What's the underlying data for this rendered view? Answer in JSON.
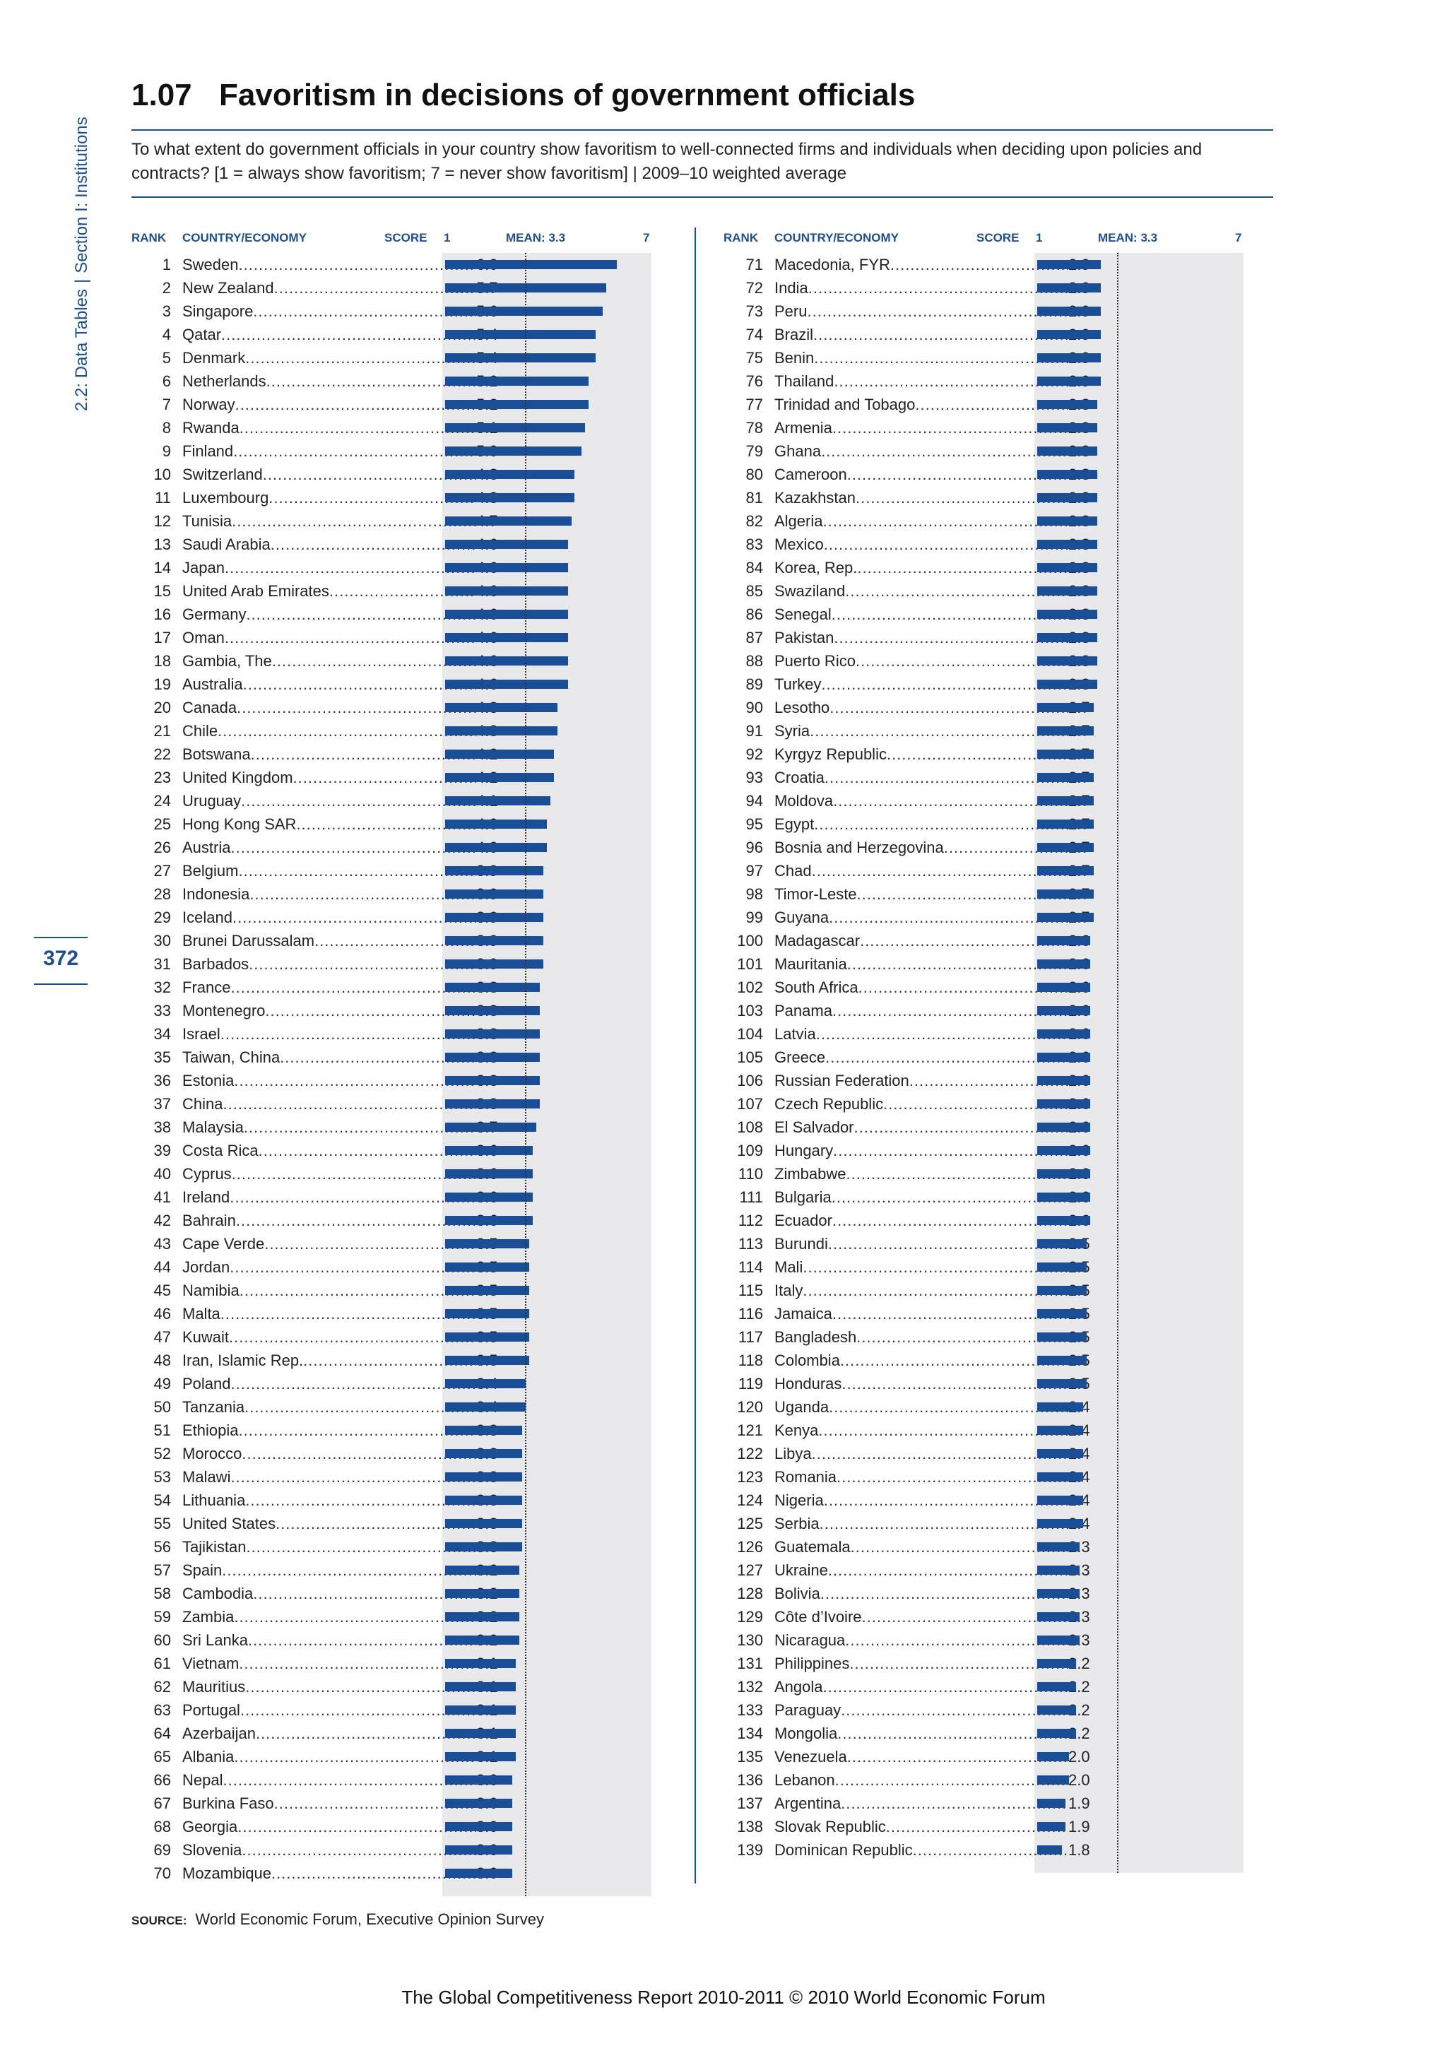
{
  "side_label": {
    "section": "2.2: Data Tables",
    "separator": "|",
    "part": "Section I: Institutions"
  },
  "page_number": "372",
  "title": {
    "number": "1.07",
    "text": "Favoritism in decisions of government officials"
  },
  "question": "To what extent do government officials in your country show favoritism to well-connected firms and individuals when deciding upon policies and contracts? [1 = always show favoritism; 7 = never show favoritism] | 2009–10 weighted average",
  "headers": {
    "rank": "RANK",
    "country": "COUNTRY/ECONOMY",
    "score": "SCORE",
    "scale_min": "1",
    "mean": "MEAN: 3.3",
    "scale_max": "7"
  },
  "chart_data": {
    "type": "bar",
    "orientation": "horizontal",
    "xlim": [
      1,
      7
    ],
    "mean": 3.3,
    "rows": [
      {
        "rank": "1",
        "name": "Sweden",
        "score": 6.0
      },
      {
        "rank": "2",
        "name": "New Zealand",
        "score": 5.7
      },
      {
        "rank": "3",
        "name": "Singapore",
        "score": 5.6
      },
      {
        "rank": "4",
        "name": "Qatar",
        "score": 5.4
      },
      {
        "rank": "5",
        "name": "Denmark",
        "score": 5.4
      },
      {
        "rank": "6",
        "name": "Netherlands",
        "score": 5.2
      },
      {
        "rank": "7",
        "name": "Norway",
        "score": 5.2
      },
      {
        "rank": "8",
        "name": "Rwanda",
        "score": 5.1
      },
      {
        "rank": "9",
        "name": "Finland",
        "score": 5.0
      },
      {
        "rank": "10",
        "name": "Switzerland",
        "score": 4.8
      },
      {
        "rank": "11",
        "name": "Luxembourg",
        "score": 4.8
      },
      {
        "rank": "12",
        "name": "Tunisia",
        "score": 4.7
      },
      {
        "rank": "13",
        "name": "Saudi Arabia",
        "score": 4.6
      },
      {
        "rank": "14",
        "name": "Japan",
        "score": 4.6
      },
      {
        "rank": "15",
        "name": "United Arab Emirates",
        "score": 4.6
      },
      {
        "rank": "16",
        "name": "Germany",
        "score": 4.6
      },
      {
        "rank": "17",
        "name": "Oman",
        "score": 4.6
      },
      {
        "rank": "18",
        "name": "Gambia, The",
        "score": 4.6
      },
      {
        "rank": "19",
        "name": "Australia",
        "score": 4.6
      },
      {
        "rank": "20",
        "name": "Canada",
        "score": 4.3
      },
      {
        "rank": "21",
        "name": "Chile",
        "score": 4.3
      },
      {
        "rank": "22",
        "name": "Botswana",
        "score": 4.2
      },
      {
        "rank": "23",
        "name": "United Kingdom",
        "score": 4.2
      },
      {
        "rank": "24",
        "name": "Uruguay",
        "score": 4.1
      },
      {
        "rank": "25",
        "name": "Hong Kong SAR",
        "score": 4.0
      },
      {
        "rank": "26",
        "name": "Austria",
        "score": 4.0
      },
      {
        "rank": "27",
        "name": "Belgium",
        "score": 3.9
      },
      {
        "rank": "28",
        "name": "Indonesia",
        "score": 3.9
      },
      {
        "rank": "29",
        "name": "Iceland",
        "score": 3.9
      },
      {
        "rank": "30",
        "name": "Brunei Darussalam",
        "score": 3.9
      },
      {
        "rank": "31",
        "name": "Barbados",
        "score": 3.9
      },
      {
        "rank": "32",
        "name": "France",
        "score": 3.8
      },
      {
        "rank": "33",
        "name": "Montenegro",
        "score": 3.8
      },
      {
        "rank": "34",
        "name": "Israel",
        "score": 3.8
      },
      {
        "rank": "35",
        "name": "Taiwan, China",
        "score": 3.8
      },
      {
        "rank": "36",
        "name": "Estonia",
        "score": 3.8
      },
      {
        "rank": "37",
        "name": "China",
        "score": 3.8
      },
      {
        "rank": "38",
        "name": "Malaysia",
        "score": 3.7
      },
      {
        "rank": "39",
        "name": "Costa Rica",
        "score": 3.6
      },
      {
        "rank": "40",
        "name": "Cyprus",
        "score": 3.6
      },
      {
        "rank": "41",
        "name": "Ireland",
        "score": 3.6
      },
      {
        "rank": "42",
        "name": "Bahrain",
        "score": 3.6
      },
      {
        "rank": "43",
        "name": "Cape Verde",
        "score": 3.5
      },
      {
        "rank": "44",
        "name": "Jordan",
        "score": 3.5
      },
      {
        "rank": "45",
        "name": "Namibia",
        "score": 3.5
      },
      {
        "rank": "46",
        "name": "Malta",
        "score": 3.5
      },
      {
        "rank": "47",
        "name": "Kuwait",
        "score": 3.5
      },
      {
        "rank": "48",
        "name": "Iran, Islamic Rep.",
        "score": 3.5
      },
      {
        "rank": "49",
        "name": "Poland",
        "score": 3.4
      },
      {
        "rank": "50",
        "name": "Tanzania",
        "score": 3.4
      },
      {
        "rank": "51",
        "name": "Ethiopia",
        "score": 3.3
      },
      {
        "rank": "52",
        "name": "Morocco",
        "score": 3.3
      },
      {
        "rank": "53",
        "name": "Malawi",
        "score": 3.3
      },
      {
        "rank": "54",
        "name": "Lithuania",
        "score": 3.3
      },
      {
        "rank": "55",
        "name": "United States",
        "score": 3.3
      },
      {
        "rank": "56",
        "name": "Tajikistan",
        "score": 3.3
      },
      {
        "rank": "57",
        "name": "Spain",
        "score": 3.2
      },
      {
        "rank": "58",
        "name": "Cambodia",
        "score": 3.2
      },
      {
        "rank": "59",
        "name": "Zambia",
        "score": 3.2
      },
      {
        "rank": "60",
        "name": "Sri Lanka",
        "score": 3.2
      },
      {
        "rank": "61",
        "name": "Vietnam",
        "score": 3.1
      },
      {
        "rank": "62",
        "name": "Mauritius",
        "score": 3.1
      },
      {
        "rank": "63",
        "name": "Portugal",
        "score": 3.1
      },
      {
        "rank": "64",
        "name": "Azerbaijan",
        "score": 3.1
      },
      {
        "rank": "65",
        "name": "Albania",
        "score": 3.1
      },
      {
        "rank": "66",
        "name": "Nepal",
        "score": 3.0
      },
      {
        "rank": "67",
        "name": "Burkina Faso",
        "score": 3.0
      },
      {
        "rank": "68",
        "name": "Georgia",
        "score": 3.0
      },
      {
        "rank": "69",
        "name": "Slovenia",
        "score": 3.0
      },
      {
        "rank": "70",
        "name": "Mozambique",
        "score": 3.0
      },
      {
        "rank": "71",
        "name": "Macedonia, FYR",
        "score": 2.9
      },
      {
        "rank": "72",
        "name": "India",
        "score": 2.9
      },
      {
        "rank": "73",
        "name": "Peru",
        "score": 2.9
      },
      {
        "rank": "74",
        "name": "Brazil",
        "score": 2.9
      },
      {
        "rank": "75",
        "name": "Benin",
        "score": 2.9
      },
      {
        "rank": "76",
        "name": "Thailand",
        "score": 2.9
      },
      {
        "rank": "77",
        "name": "Trinidad and Tobago",
        "score": 2.8
      },
      {
        "rank": "78",
        "name": "Armenia",
        "score": 2.8
      },
      {
        "rank": "79",
        "name": "Ghana",
        "score": 2.8
      },
      {
        "rank": "80",
        "name": "Cameroon",
        "score": 2.8
      },
      {
        "rank": "81",
        "name": "Kazakhstan",
        "score": 2.8
      },
      {
        "rank": "82",
        "name": "Algeria",
        "score": 2.8
      },
      {
        "rank": "83",
        "name": "Mexico",
        "score": 2.8
      },
      {
        "rank": "84",
        "name": "Korea, Rep.",
        "score": 2.8
      },
      {
        "rank": "85",
        "name": "Swaziland",
        "score": 2.8
      },
      {
        "rank": "86",
        "name": "Senegal",
        "score": 2.8
      },
      {
        "rank": "87",
        "name": "Pakistan",
        "score": 2.8
      },
      {
        "rank": "88",
        "name": "Puerto Rico",
        "score": 2.8
      },
      {
        "rank": "89",
        "name": "Turkey",
        "score": 2.8
      },
      {
        "rank": "90",
        "name": "Lesotho",
        "score": 2.7
      },
      {
        "rank": "91",
        "name": "Syria",
        "score": 2.7
      },
      {
        "rank": "92",
        "name": "Kyrgyz Republic",
        "score": 2.7
      },
      {
        "rank": "93",
        "name": "Croatia",
        "score": 2.7
      },
      {
        "rank": "94",
        "name": "Moldova",
        "score": 2.7
      },
      {
        "rank": "95",
        "name": "Egypt",
        "score": 2.7
      },
      {
        "rank": "96",
        "name": "Bosnia and Herzegovina",
        "score": 2.7
      },
      {
        "rank": "97",
        "name": "Chad",
        "score": 2.7
      },
      {
        "rank": "98",
        "name": "Timor-Leste",
        "score": 2.7
      },
      {
        "rank": "99",
        "name": "Guyana",
        "score": 2.7
      },
      {
        "rank": "100",
        "name": "Madagascar",
        "score": 2.6
      },
      {
        "rank": "101",
        "name": "Mauritania",
        "score": 2.6
      },
      {
        "rank": "102",
        "name": "South Africa",
        "score": 2.6
      },
      {
        "rank": "103",
        "name": "Panama",
        "score": 2.6
      },
      {
        "rank": "104",
        "name": "Latvia",
        "score": 2.6
      },
      {
        "rank": "105",
        "name": "Greece",
        "score": 2.6
      },
      {
        "rank": "106",
        "name": "Russian Federation",
        "score": 2.6
      },
      {
        "rank": "107",
        "name": "Czech Republic",
        "score": 2.6
      },
      {
        "rank": "108",
        "name": "El Salvador",
        "score": 2.6
      },
      {
        "rank": "109",
        "name": "Hungary",
        "score": 2.6
      },
      {
        "rank": "110",
        "name": "Zimbabwe",
        "score": 2.6
      },
      {
        "rank": "111",
        "name": "Bulgaria",
        "score": 2.6
      },
      {
        "rank": "112",
        "name": "Ecuador",
        "score": 2.6
      },
      {
        "rank": "113",
        "name": "Burundi",
        "score": 2.5
      },
      {
        "rank": "114",
        "name": "Mali",
        "score": 2.5
      },
      {
        "rank": "115",
        "name": "Italy",
        "score": 2.5
      },
      {
        "rank": "116",
        "name": "Jamaica",
        "score": 2.5
      },
      {
        "rank": "117",
        "name": "Bangladesh",
        "score": 2.5
      },
      {
        "rank": "118",
        "name": "Colombia",
        "score": 2.5
      },
      {
        "rank": "119",
        "name": "Honduras",
        "score": 2.5
      },
      {
        "rank": "120",
        "name": "Uganda",
        "score": 2.4
      },
      {
        "rank": "121",
        "name": "Kenya",
        "score": 2.4
      },
      {
        "rank": "122",
        "name": "Libya",
        "score": 2.4
      },
      {
        "rank": "123",
        "name": "Romania",
        "score": 2.4
      },
      {
        "rank": "124",
        "name": "Nigeria",
        "score": 2.4
      },
      {
        "rank": "125",
        "name": "Serbia",
        "score": 2.4
      },
      {
        "rank": "126",
        "name": "Guatemala",
        "score": 2.3
      },
      {
        "rank": "127",
        "name": "Ukraine",
        "score": 2.3
      },
      {
        "rank": "128",
        "name": "Bolivia",
        "score": 2.3
      },
      {
        "rank": "129",
        "name": "Côte d’Ivoire",
        "score": 2.3
      },
      {
        "rank": "130",
        "name": "Nicaragua",
        "score": 2.3
      },
      {
        "rank": "131",
        "name": "Philippines",
        "score": 2.2
      },
      {
        "rank": "132",
        "name": "Angola",
        "score": 2.2
      },
      {
        "rank": "133",
        "name": "Paraguay",
        "score": 2.2
      },
      {
        "rank": "134",
        "name": "Mongolia",
        "score": 2.2
      },
      {
        "rank": "135",
        "name": "Venezuela",
        "score": 2.0
      },
      {
        "rank": "136",
        "name": "Lebanon",
        "score": 2.0
      },
      {
        "rank": "137",
        "name": "Argentina",
        "score": 1.9
      },
      {
        "rank": "138",
        "name": "Slovak Republic",
        "score": 1.9
      },
      {
        "rank": "139",
        "name": "Dominican Republic",
        "score": 1.8
      }
    ]
  },
  "source": {
    "label": "SOURCE:",
    "text": "World Economic Forum, Executive Opinion Survey"
  },
  "footer": "The Global Competitiveness Report 2010-2011 © 2010 World Economic Forum",
  "colors": {
    "accent": "#1f4e8c",
    "bar": "#1a4f97",
    "bar_background": "#e9e9ec"
  }
}
